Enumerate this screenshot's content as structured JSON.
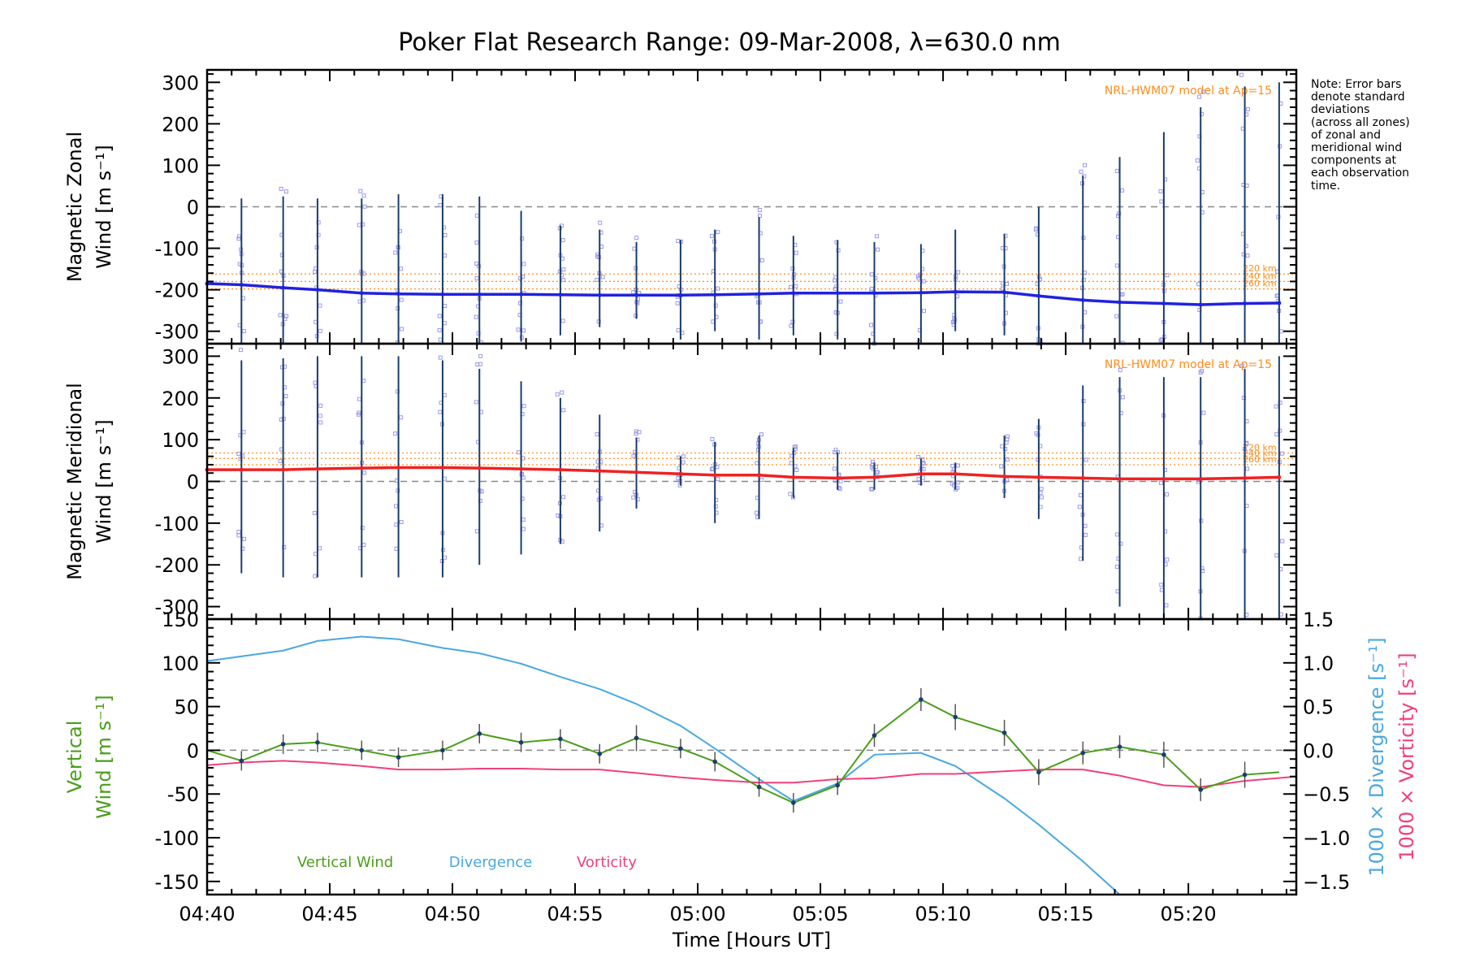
{
  "title": "Poker Flat Research Range: 09-Mar-2008, λ=630.0 nm",
  "note": [
    "Note: Error bars",
    "denote standard",
    "deviations",
    "(across all zones)",
    "of zonal and",
    "meridional wind",
    "components at",
    "each observation",
    "time."
  ],
  "colors": {
    "zonal": "#2222dd",
    "meridional": "#ee2222",
    "vertical": "#4a9e1a",
    "divergence": "#4aa8e0",
    "vorticity": "#f0407a",
    "model": "#ff8c1a",
    "scatter": "#9a9ae8",
    "errorbar": "#1a3d6e",
    "zero": "#888888"
  },
  "chart_data": [
    {
      "id": "zonal",
      "type": "line",
      "ylabel_lines": [
        "Magnetic Zonal",
        "Wind [m s⁻¹]"
      ],
      "ylim": [
        -330,
        330
      ],
      "yticks": [
        -300,
        -200,
        -100,
        0,
        100,
        200,
        300
      ],
      "model_label": "NRL-HWM07 model at Ap=15",
      "model_lines": [
        {
          "label": "220 km",
          "value": -162
        },
        {
          "label": "240 km",
          "value": -180
        },
        {
          "label": "260 km",
          "value": -198
        }
      ],
      "x": [
        280.0,
        281.4,
        283.1,
        284.5,
        286.3,
        287.8,
        289.6,
        291.1,
        292.8,
        294.4,
        296.0,
        297.5,
        299.3,
        300.7,
        302.5,
        303.9,
        305.7,
        307.2,
        309.1,
        310.5,
        312.5,
        313.9,
        315.7,
        317.2,
        319.0,
        320.5,
        322.3,
        323.7
      ],
      "series": [
        {
          "values": [
            -185,
            -188,
            -195,
            -200,
            -208,
            -210,
            -211,
            -211,
            -211,
            -212,
            -213,
            -213,
            -213,
            -212,
            -210,
            -208,
            -208,
            -208,
            -207,
            -205,
            -206,
            -215,
            -225,
            -230,
            -233,
            -236,
            -233,
            -232
          ]
        }
      ],
      "err_lo": [
        -330,
        -330,
        -330,
        -330,
        -330,
        -330,
        -330,
        -330,
        -325,
        -310,
        -290,
        -270,
        -320,
        -300,
        -320,
        -310,
        -320,
        -330,
        -330,
        -300,
        -310,
        -330,
        -330,
        -330,
        -330,
        -330,
        -330,
        -330
      ],
      "err_hi": [
        20,
        20,
        25,
        20,
        20,
        30,
        30,
        25,
        -10,
        -45,
        -55,
        -85,
        -80,
        -55,
        -25,
        -70,
        -80,
        -85,
        -90,
        -55,
        -65,
        0,
        75,
        120,
        180,
        240,
        290,
        300
      ]
    },
    {
      "id": "meridional",
      "type": "line",
      "ylabel_lines": [
        "Magnetic Meridional",
        "Wind [m s⁻¹]"
      ],
      "ylim": [
        -330,
        330
      ],
      "yticks": [
        -300,
        -200,
        -100,
        0,
        100,
        200,
        300
      ],
      "model_label": "NRL-HWM07 model at Ap=15",
      "model_lines": [
        {
          "label": "220 km",
          "value": 68
        },
        {
          "label": "240 km",
          "value": 55
        },
        {
          "label": "260 km",
          "value": 40
        }
      ],
      "x": [
        280.0,
        281.4,
        283.1,
        284.5,
        286.3,
        287.8,
        289.6,
        291.1,
        292.8,
        294.4,
        296.0,
        297.5,
        299.3,
        300.7,
        302.5,
        303.9,
        305.7,
        307.2,
        309.1,
        310.5,
        312.5,
        313.9,
        315.7,
        317.2,
        319.0,
        320.5,
        322.3,
        323.7
      ],
      "series": [
        {
          "values": [
            28,
            28,
            28,
            30,
            32,
            33,
            33,
            32,
            30,
            28,
            25,
            22,
            18,
            15,
            15,
            10,
            8,
            10,
            18,
            18,
            12,
            10,
            8,
            6,
            6,
            6,
            8,
            10
          ]
        }
      ],
      "err_lo": [
        -220,
        -220,
        -230,
        -230,
        -230,
        -230,
        -230,
        -200,
        -175,
        -150,
        -120,
        -65,
        -10,
        -100,
        -90,
        -40,
        -20,
        -20,
        -10,
        -20,
        -40,
        -90,
        -190,
        -300,
        -330,
        -330,
        -330,
        -330
      ],
      "err_hi": [
        265,
        290,
        295,
        300,
        300,
        300,
        290,
        270,
        240,
        200,
        160,
        105,
        60,
        95,
        110,
        80,
        70,
        45,
        55,
        45,
        110,
        150,
        230,
        250,
        250,
        250,
        270,
        300
      ]
    },
    {
      "id": "vertical",
      "type": "line",
      "ylabel_lines": [
        "Vertical",
        "Wind [m s⁻¹]"
      ],
      "ylim": [
        -165,
        150
      ],
      "yticks": [
        -150,
        -100,
        -50,
        0,
        50,
        100,
        150
      ],
      "y2lim": [
        -1.65,
        1.5
      ],
      "y2ticks": [
        -1.5,
        -1.0,
        -0.5,
        0.0,
        0.5,
        1.0,
        1.5
      ],
      "y2labels": [
        "1000 × Divergence [s⁻¹]",
        "1000 × Vorticity [s⁻¹]"
      ],
      "xlabel": "Time [Hours UT]",
      "xticks": [
        280,
        285,
        290,
        295,
        300,
        305,
        310,
        315,
        320
      ],
      "xticklabels": [
        "04:40",
        "04:45",
        "04:50",
        "04:55",
        "05:00",
        "05:05",
        "05:10",
        "05:15",
        "05:20"
      ],
      "xlim": [
        280,
        324.4
      ],
      "legend": [
        "Vertical Wind",
        "Divergence",
        "Vorticity"
      ],
      "vertical": {
        "x": [
          280.0,
          281.4,
          283.1,
          284.5,
          286.3,
          287.8,
          289.6,
          291.1,
          292.8,
          294.4,
          296.0,
          297.5,
          299.3,
          300.7,
          302.5,
          303.9,
          305.7,
          307.2,
          309.1,
          310.5,
          312.5,
          313.9,
          315.7,
          317.2,
          319.0,
          320.5,
          322.3,
          323.7
        ],
        "values": [
          0,
          -12,
          7,
          9,
          0,
          -8,
          0,
          19,
          9,
          13,
          -4,
          14,
          2,
          -13,
          -42,
          -60,
          -40,
          17,
          58,
          38,
          20,
          -25,
          -3,
          4,
          -5,
          -45,
          -28,
          -25
        ],
        "err": [
          0,
          6,
          6,
          6,
          6,
          6,
          6,
          6,
          6,
          6,
          6,
          8,
          6,
          6,
          6,
          6,
          6,
          7,
          7,
          8,
          8,
          8,
          7,
          7,
          8,
          7,
          8,
          0
        ]
      },
      "divergence": {
        "x": [
          280.0,
          283.1,
          284.5,
          286.3,
          287.8,
          289.6,
          291.1,
          292.8,
          294.4,
          296.0,
          297.5,
          299.3,
          300.7,
          302.5,
          303.9,
          305.7,
          307.2,
          309.1,
          310.5,
          312.5,
          313.9,
          315.7,
          317.2
        ],
        "values": [
          1.02,
          1.14,
          1.25,
          1.3,
          1.27,
          1.17,
          1.11,
          0.99,
          0.84,
          0.7,
          0.53,
          0.28,
          0.02,
          -0.33,
          -0.58,
          -0.38,
          -0.05,
          -0.03,
          -0.18,
          -0.55,
          -0.85,
          -1.27,
          -1.65
        ]
      },
      "vorticity": {
        "x": [
          280.0,
          281.4,
          283.1,
          284.5,
          286.3,
          287.8,
          289.6,
          291.1,
          292.8,
          294.4,
          296.0,
          297.5,
          299.3,
          300.7,
          302.5,
          303.9,
          305.7,
          307.2,
          309.1,
          310.5,
          312.5,
          313.9,
          315.7,
          317.2,
          319.0,
          320.5,
          322.3,
          324.4
        ],
        "values": [
          -0.17,
          -0.14,
          -0.12,
          -0.14,
          -0.18,
          -0.22,
          -0.22,
          -0.21,
          -0.21,
          -0.22,
          -0.22,
          -0.26,
          -0.31,
          -0.34,
          -0.37,
          -0.37,
          -0.33,
          -0.32,
          -0.27,
          -0.27,
          -0.24,
          -0.22,
          -0.22,
          -0.29,
          -0.4,
          -0.42,
          -0.35,
          -0.3
        ]
      }
    }
  ]
}
